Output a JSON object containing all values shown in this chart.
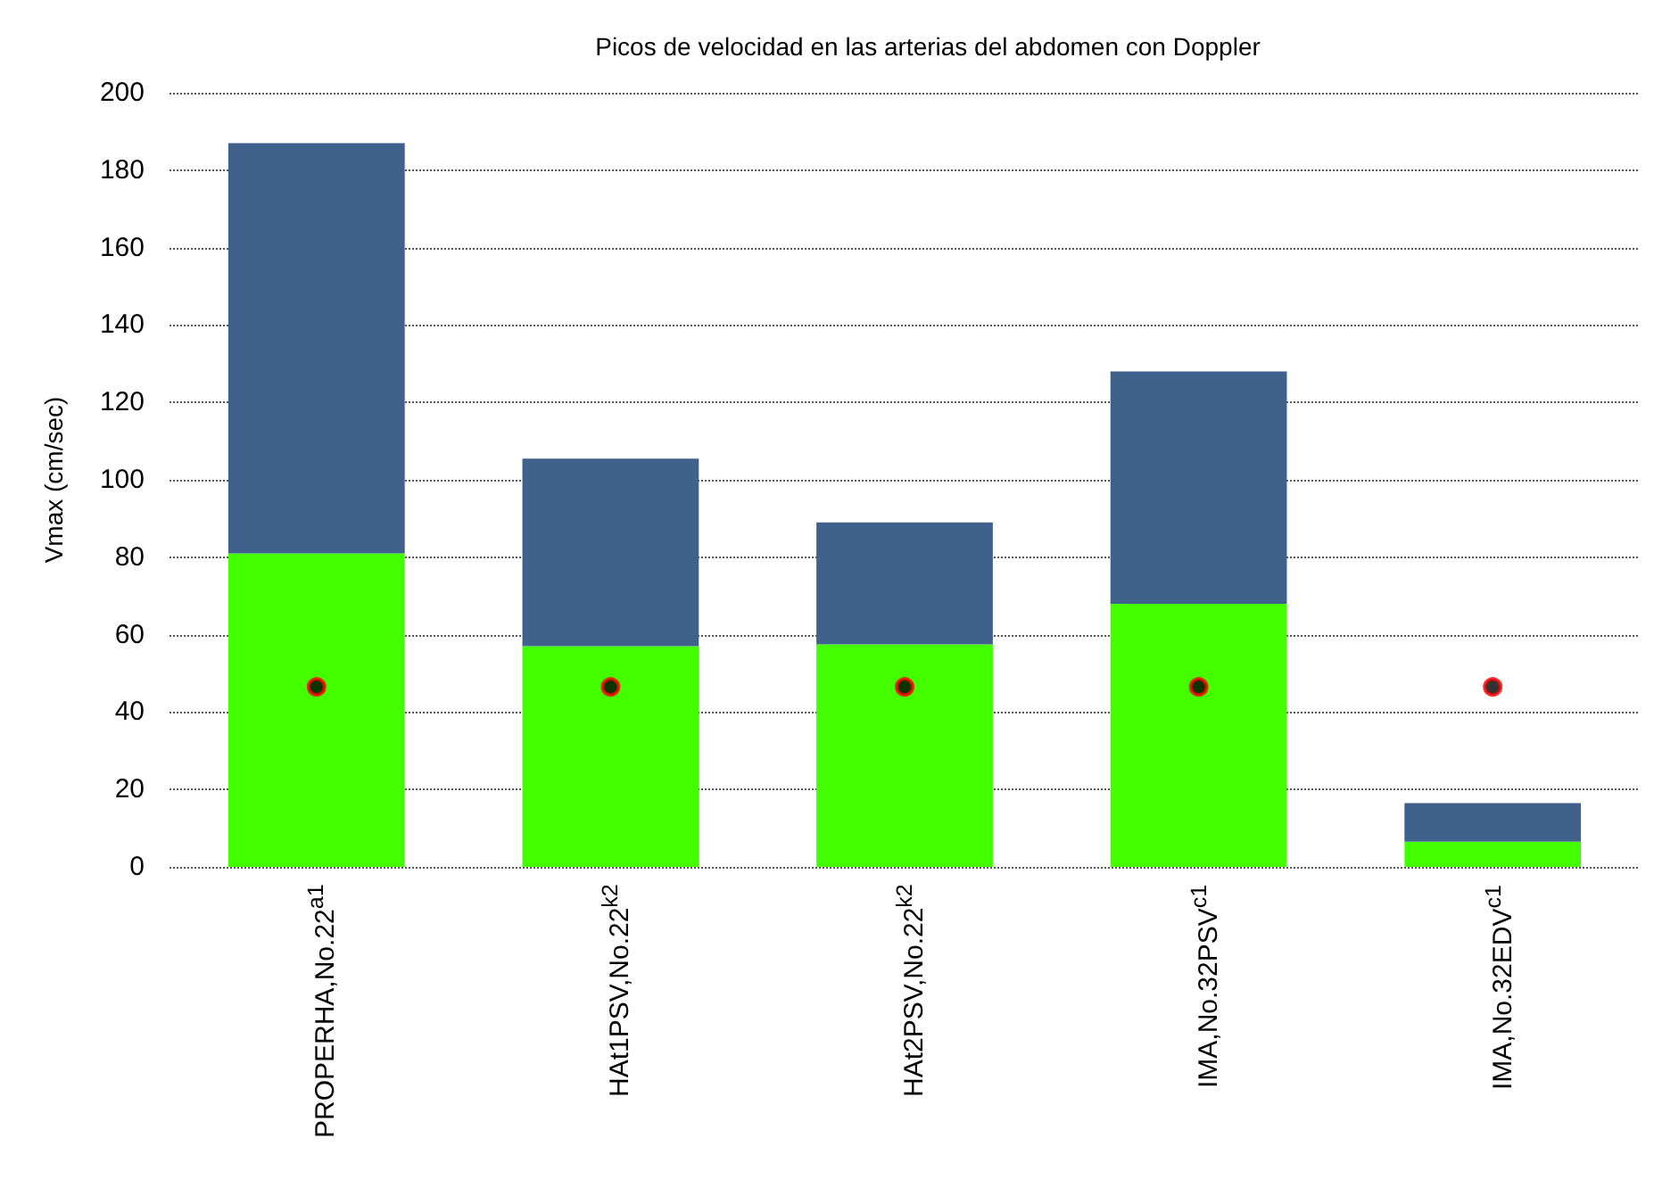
{
  "chart_data": {
    "type": "bar",
    "title": "Picos de velocidad en las arterias del abdomen con Doppler",
    "ylabel": "Vmax (cm/sec)",
    "categories": [
      "PROPERHA,No.22$^{a1}$",
      "HAt1PSV,No.22$^{k2}$",
      "HAt2PSV,No.22$^{k2}$",
      "IMA,No.32PSV$^{c1}$",
      "IMA,No.32EDV$^{c1}$"
    ],
    "stacked": true,
    "series": [
      {
        "color": "#44ff00",
        "values": [
          81,
          57,
          57.5,
          68,
          6.5
        ]
      },
      {
        "color": "#3f618c",
        "values": [
          106,
          48.5,
          31.5,
          60,
          10
        ]
      },
      {
        "type": "scatter",
        "color": "#000000",
        "marker": "circle",
        "x": [
          "PROPERHA,No.22$^{a1}$",
          "HAt1PSV,No.22$^{k2}$",
          "HAt2PSV,No.22$^{k2}$",
          "IMA,No.32PSV$^{c1}$",
          "IMA,No.32EDV$^{c1}$"
        ],
        "values": [
          46.5,
          46.5,
          46.5,
          46.5,
          46.5
        ]
      }
    ],
    "ylim": [
      0,
      200
    ],
    "yticks": [
      0,
      20,
      40,
      60,
      80,
      100,
      120,
      140,
      160,
      180,
      200
    ],
    "grid": "y"
  }
}
